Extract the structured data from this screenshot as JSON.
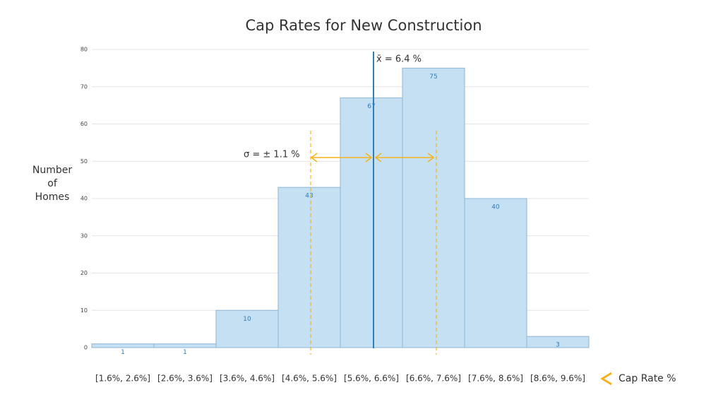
{
  "chart_data": {
    "type": "bar",
    "title": "Cap Rates for New Construction",
    "ylabel": [
      "Number",
      "of",
      "Homes"
    ],
    "xlabel": "Cap Rate %",
    "categories": [
      "[1.6%, 2.6%]",
      "[2.6%, 3.6%]",
      "[3.6%, 4.6%]",
      "[4.6%, 5.6%]",
      "[5.6%, 6.6%]",
      "[6.6%, 7.6%]",
      "[7.6%, 8.6%]",
      "[8.6%, 9.6%]"
    ],
    "values": [
      1,
      1,
      10,
      43,
      67,
      75,
      40,
      3
    ],
    "color": "#c6e0f3",
    "ylim": [
      0,
      80
    ],
    "yticks": [
      0,
      10,
      20,
      30,
      40,
      50,
      60,
      70,
      80
    ],
    "grid": true,
    "annotations": {
      "mean": "x̄ = 6.4 %",
      "sd": "σ = ± 1.1 %"
    }
  }
}
